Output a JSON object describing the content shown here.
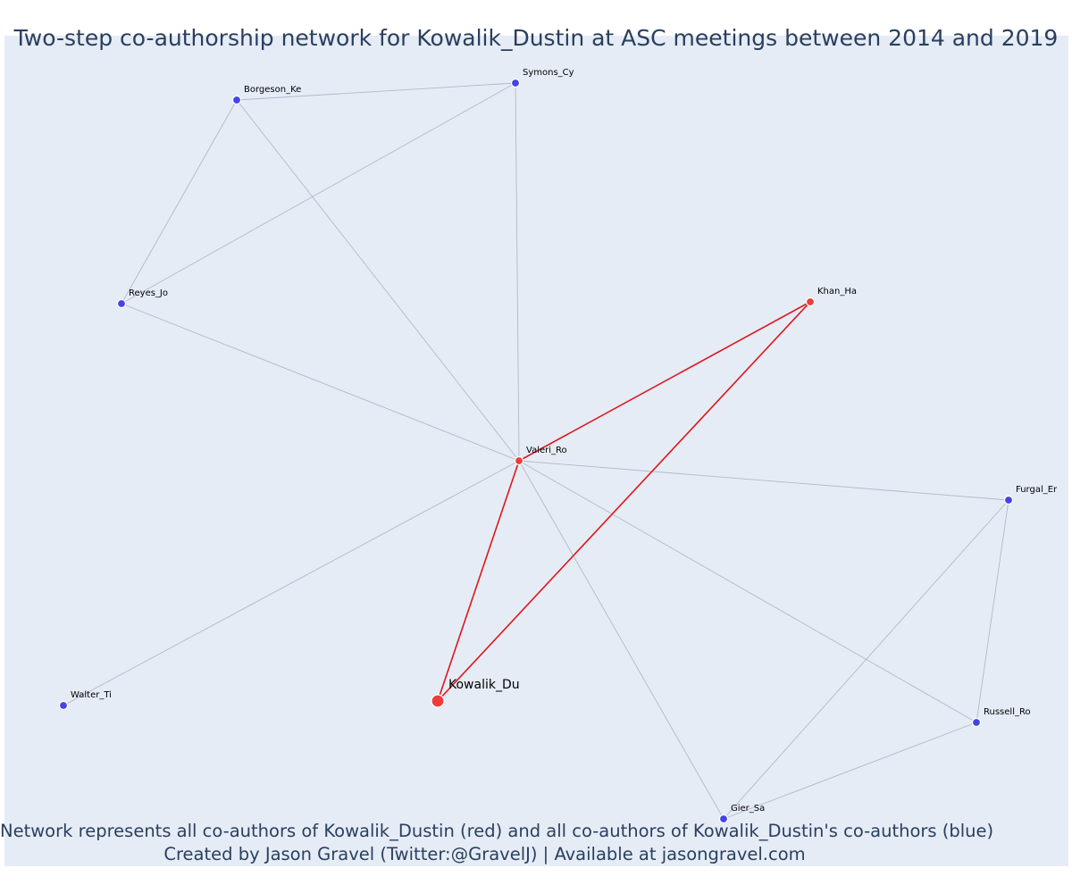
{
  "title": "Two-step co-authorship network for Kowalik_Dustin at ASC meetings between 2014 and 2019",
  "caption": {
    "line1": "Network represents all co-authors of Kowalik_Dustin (red) and all co-authors of Kowalik_Dustin's co-authors (blue)",
    "line2": "Created by Jason Gravel (Twitter:@GravelJ) | Available at jasongravel.com"
  },
  "colors": {
    "focal": "#ef3b3b",
    "coauthor": "#ef3b3b",
    "second_step": "#4343e6",
    "focal_edge": "#e0161b",
    "other_edge": "#b4b8c8",
    "background": "#e5ecf6",
    "title_text": "#2a3f5f"
  },
  "nodes": [
    {
      "id": "Kowalik_Du",
      "label": "Kowalik_Du",
      "group": "focal"
    },
    {
      "id": "Valeri_Ro",
      "label": "Valeri_Ro",
      "group": "coauthor"
    },
    {
      "id": "Khan_Ha",
      "label": "Khan_Ha",
      "group": "coauthor"
    },
    {
      "id": "Borgeson_Ke",
      "label": "Borgeson_Ke",
      "group": "second_step"
    },
    {
      "id": "Symons_Cy",
      "label": "Symons_Cy",
      "group": "second_step"
    },
    {
      "id": "Reyes_Jo",
      "label": "Reyes_Jo",
      "group": "second_step"
    },
    {
      "id": "Furgal_Er",
      "label": "Furgal_Er",
      "group": "second_step"
    },
    {
      "id": "Walter_Ti",
      "label": "Walter_Ti",
      "group": "second_step"
    },
    {
      "id": "Russell_Ro",
      "label": "Russell_Ro",
      "group": "second_step"
    },
    {
      "id": "Gier_Sa",
      "label": "Gier_Sa",
      "group": "second_step"
    }
  ],
  "edges": [
    {
      "source": "Kowalik_Du",
      "target": "Valeri_Ro",
      "focal": true
    },
    {
      "source": "Kowalik_Du",
      "target": "Khan_Ha",
      "focal": true
    },
    {
      "source": "Valeri_Ro",
      "target": "Khan_Ha",
      "focal": true
    },
    {
      "source": "Valeri_Ro",
      "target": "Borgeson_Ke",
      "focal": false
    },
    {
      "source": "Valeri_Ro",
      "target": "Symons_Cy",
      "focal": false
    },
    {
      "source": "Valeri_Ro",
      "target": "Reyes_Jo",
      "focal": false
    },
    {
      "source": "Valeri_Ro",
      "target": "Furgal_Er",
      "focal": false
    },
    {
      "source": "Valeri_Ro",
      "target": "Walter_Ti",
      "focal": false
    },
    {
      "source": "Valeri_Ro",
      "target": "Russell_Ro",
      "focal": false
    },
    {
      "source": "Valeri_Ro",
      "target": "Gier_Sa",
      "focal": false
    },
    {
      "source": "Borgeson_Ke",
      "target": "Symons_Cy",
      "focal": false
    },
    {
      "source": "Borgeson_Ke",
      "target": "Reyes_Jo",
      "focal": false
    },
    {
      "source": "Symons_Cy",
      "target": "Reyes_Jo",
      "focal": false
    },
    {
      "source": "Furgal_Er",
      "target": "Russell_Ro",
      "focal": false
    },
    {
      "source": "Furgal_Er",
      "target": "Gier_Sa",
      "focal": false
    },
    {
      "source": "Russell_Ro",
      "target": "Gier_Sa",
      "focal": false
    }
  ]
}
